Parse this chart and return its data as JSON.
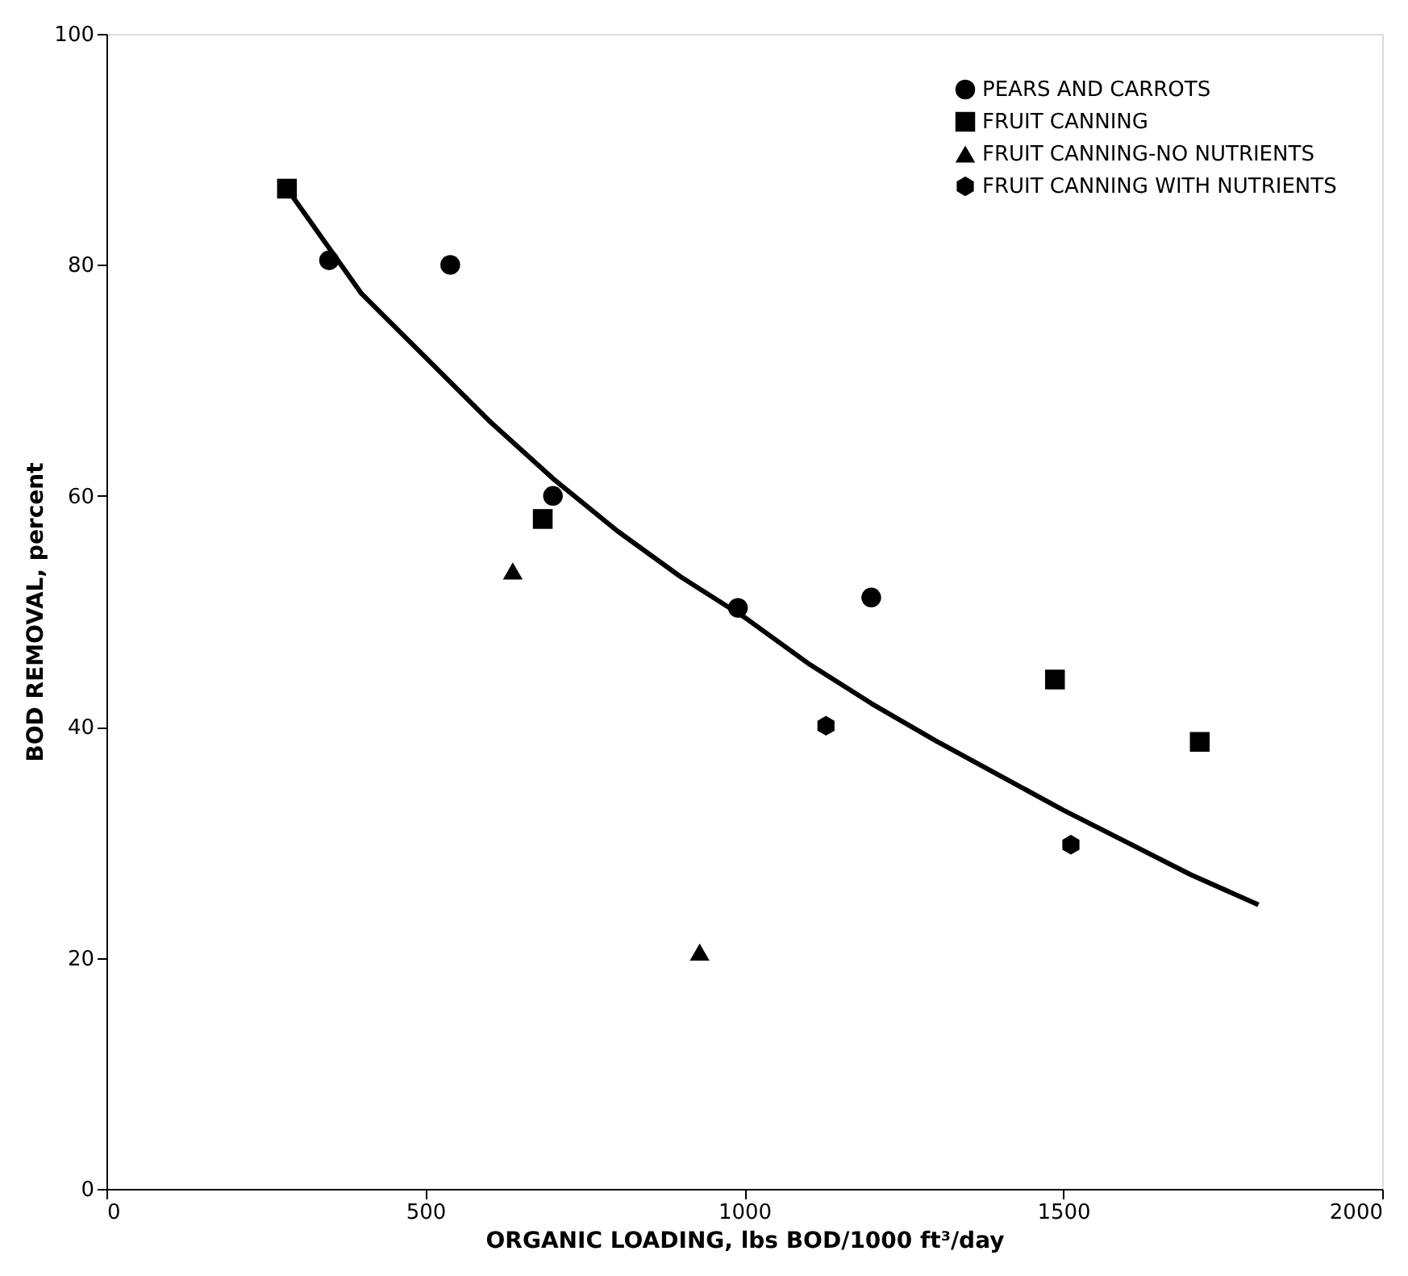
{
  "chart_data": {
    "type": "scatter",
    "xlabel": "ORGANIC LOADING, lbs BOD/1000 ft³/day",
    "ylabel": "BOD REMOVAL, percent",
    "xlim": [
      0,
      2000
    ],
    "xticks": [
      0,
      500,
      1000,
      1500,
      2000
    ],
    "ylim": [
      0,
      100
    ],
    "yticks": [
      0,
      20,
      40,
      60,
      80,
      100
    ],
    "grid": false,
    "legend": "top right",
    "series": [
      {
        "name": "PEARS AND CARROTS",
        "color": "#000000",
        "marker": "circle",
        "x": [
          349,
          539,
          700,
          990,
          1199
        ],
        "values": [
          80.4,
          80.0,
          60.0,
          50.3,
          51.2
        ]
      },
      {
        "name": "FRUIT CANNING",
        "color": "#000000",
        "marker": "square",
        "x": [
          283,
          684,
          1487,
          1714
        ],
        "values": [
          86.6,
          58.0,
          44.1,
          38.7
        ]
      },
      {
        "name": "FRUIT CANNING-NO NUTRIENTS",
        "color": "#000000",
        "marker": "triangle",
        "x": [
          637,
          930
        ],
        "values": [
          53.5,
          20.5
        ]
      },
      {
        "name": "FRUIT CANNING WITH NUTRIENTS",
        "color": "#000000",
        "x": [
          1128,
          1512
        ],
        "values": [
          40.1,
          29.8
        ]
      },
      {
        "type": "line",
        "color": "#000000",
        "line_style": "solid",
        "marker": "none",
        "x": [
          283,
          400,
          500,
          600,
          700,
          800,
          900,
          1000,
          1100,
          1200,
          1300,
          1400,
          1500,
          1600,
          1700,
          1806
        ],
        "values": [
          86.6,
          77.5,
          72.0,
          66.5,
          61.5,
          57.0,
          53.0,
          49.5,
          45.5,
          42.0,
          38.8,
          35.8,
          32.8,
          30.0,
          27.2,
          24.6
        ]
      }
    ]
  }
}
